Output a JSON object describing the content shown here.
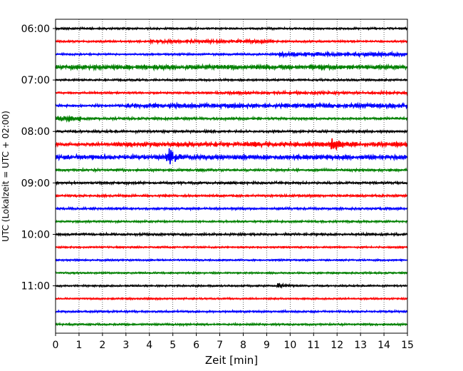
{
  "chart_data": {
    "type": "line",
    "xlabel": "Zeit  [min]",
    "ylabel": "UTC (Lokalzeit = UTC + 02:00)",
    "xlim": [
      0,
      15
    ],
    "xticks": [
      0,
      1,
      2,
      3,
      4,
      5,
      6,
      7,
      8,
      9,
      10,
      11,
      12,
      13,
      14,
      15
    ],
    "xtick_labels": [
      "0",
      "1",
      "2",
      "3",
      "4",
      "5",
      "6",
      "7",
      "8",
      "9",
      "10",
      "11",
      "12",
      "13",
      "14",
      "15"
    ],
    "grid": "vertical-dotted",
    "ytick_labels": [
      "06:00",
      "07:00",
      "08:00",
      "09:00",
      "10:00",
      "11:00"
    ],
    "trace_colors": [
      "#000000",
      "#ff0000",
      "#0000ff",
      "#008000"
    ],
    "traces": [
      {
        "start": "06:00",
        "color": "#000000",
        "amplitude": 0.25
      },
      {
        "start": "06:15",
        "color": "#ff0000",
        "amplitude": 0.25,
        "segments": [
          {
            "x0": 4,
            "x1": 9.3,
            "amp": 0.45
          }
        ]
      },
      {
        "start": "06:30",
        "color": "#0000ff",
        "amplitude": 0.25,
        "segments": [
          {
            "x0": 9.5,
            "x1": 15,
            "amp": 0.55
          }
        ]
      },
      {
        "start": "06:45",
        "color": "#008000",
        "amplitude": 0.55,
        "segments": [
          {
            "x0": 0,
            "x1": 12,
            "amp": 0.6
          }
        ]
      },
      {
        "start": "07:00",
        "color": "#000000",
        "amplitude": 0.25
      },
      {
        "start": "07:15",
        "color": "#ff0000",
        "amplitude": 0.25,
        "segments": [
          {
            "x0": 6.8,
            "x1": 15,
            "amp": 0.35
          }
        ]
      },
      {
        "start": "07:30",
        "color": "#0000ff",
        "amplitude": 0.3,
        "segments": [
          {
            "x0": 3,
            "x1": 15,
            "amp": 0.6
          }
        ]
      },
      {
        "start": "07:45",
        "color": "#008000",
        "amplitude": 0.3,
        "segments": [
          {
            "x0": 0,
            "x1": 1.1,
            "amp": 0.7
          }
        ]
      },
      {
        "start": "08:00",
        "color": "#000000",
        "amplitude": 0.3
      },
      {
        "start": "08:15",
        "color": "#ff0000",
        "amplitude": 0.4,
        "segments": [
          {
            "x0": 2.5,
            "x1": 15,
            "amp": 0.6
          }
        ],
        "events": [
          {
            "x": 11.8,
            "amp": 2.0
          }
        ]
      },
      {
        "start": "08:30",
        "color": "#0000ff",
        "amplitude": 0.45,
        "segments": [
          {
            "x0": 0,
            "x1": 15,
            "amp": 0.6
          }
        ],
        "events": [
          {
            "x": 4.8,
            "amp": 2.3
          }
        ]
      },
      {
        "start": "08:45",
        "color": "#008000",
        "amplitude": 0.3
      },
      {
        "start": "09:00",
        "color": "#000000",
        "amplitude": 0.3
      },
      {
        "start": "09:15",
        "color": "#ff0000",
        "amplitude": 0.28
      },
      {
        "start": "09:30",
        "color": "#0000ff",
        "amplitude": 0.28
      },
      {
        "start": "09:45",
        "color": "#008000",
        "amplitude": 0.25
      },
      {
        "start": "10:00",
        "color": "#000000",
        "amplitude": 0.3
      },
      {
        "start": "10:15",
        "color": "#ff0000",
        "amplitude": 0.22
      },
      {
        "start": "10:30",
        "color": "#0000ff",
        "amplitude": 0.22
      },
      {
        "start": "10:45",
        "color": "#008000",
        "amplitude": 0.22
      },
      {
        "start": "11:00",
        "color": "#000000",
        "amplitude": 0.22,
        "events": [
          {
            "x": 9.5,
            "amp": 0.7
          }
        ]
      },
      {
        "start": "11:15",
        "color": "#ff0000",
        "amplitude": 0.22
      },
      {
        "start": "11:30",
        "color": "#0000ff",
        "amplitude": 0.25
      },
      {
        "start": "11:45",
        "color": "#008000",
        "amplitude": 0.25
      }
    ]
  }
}
